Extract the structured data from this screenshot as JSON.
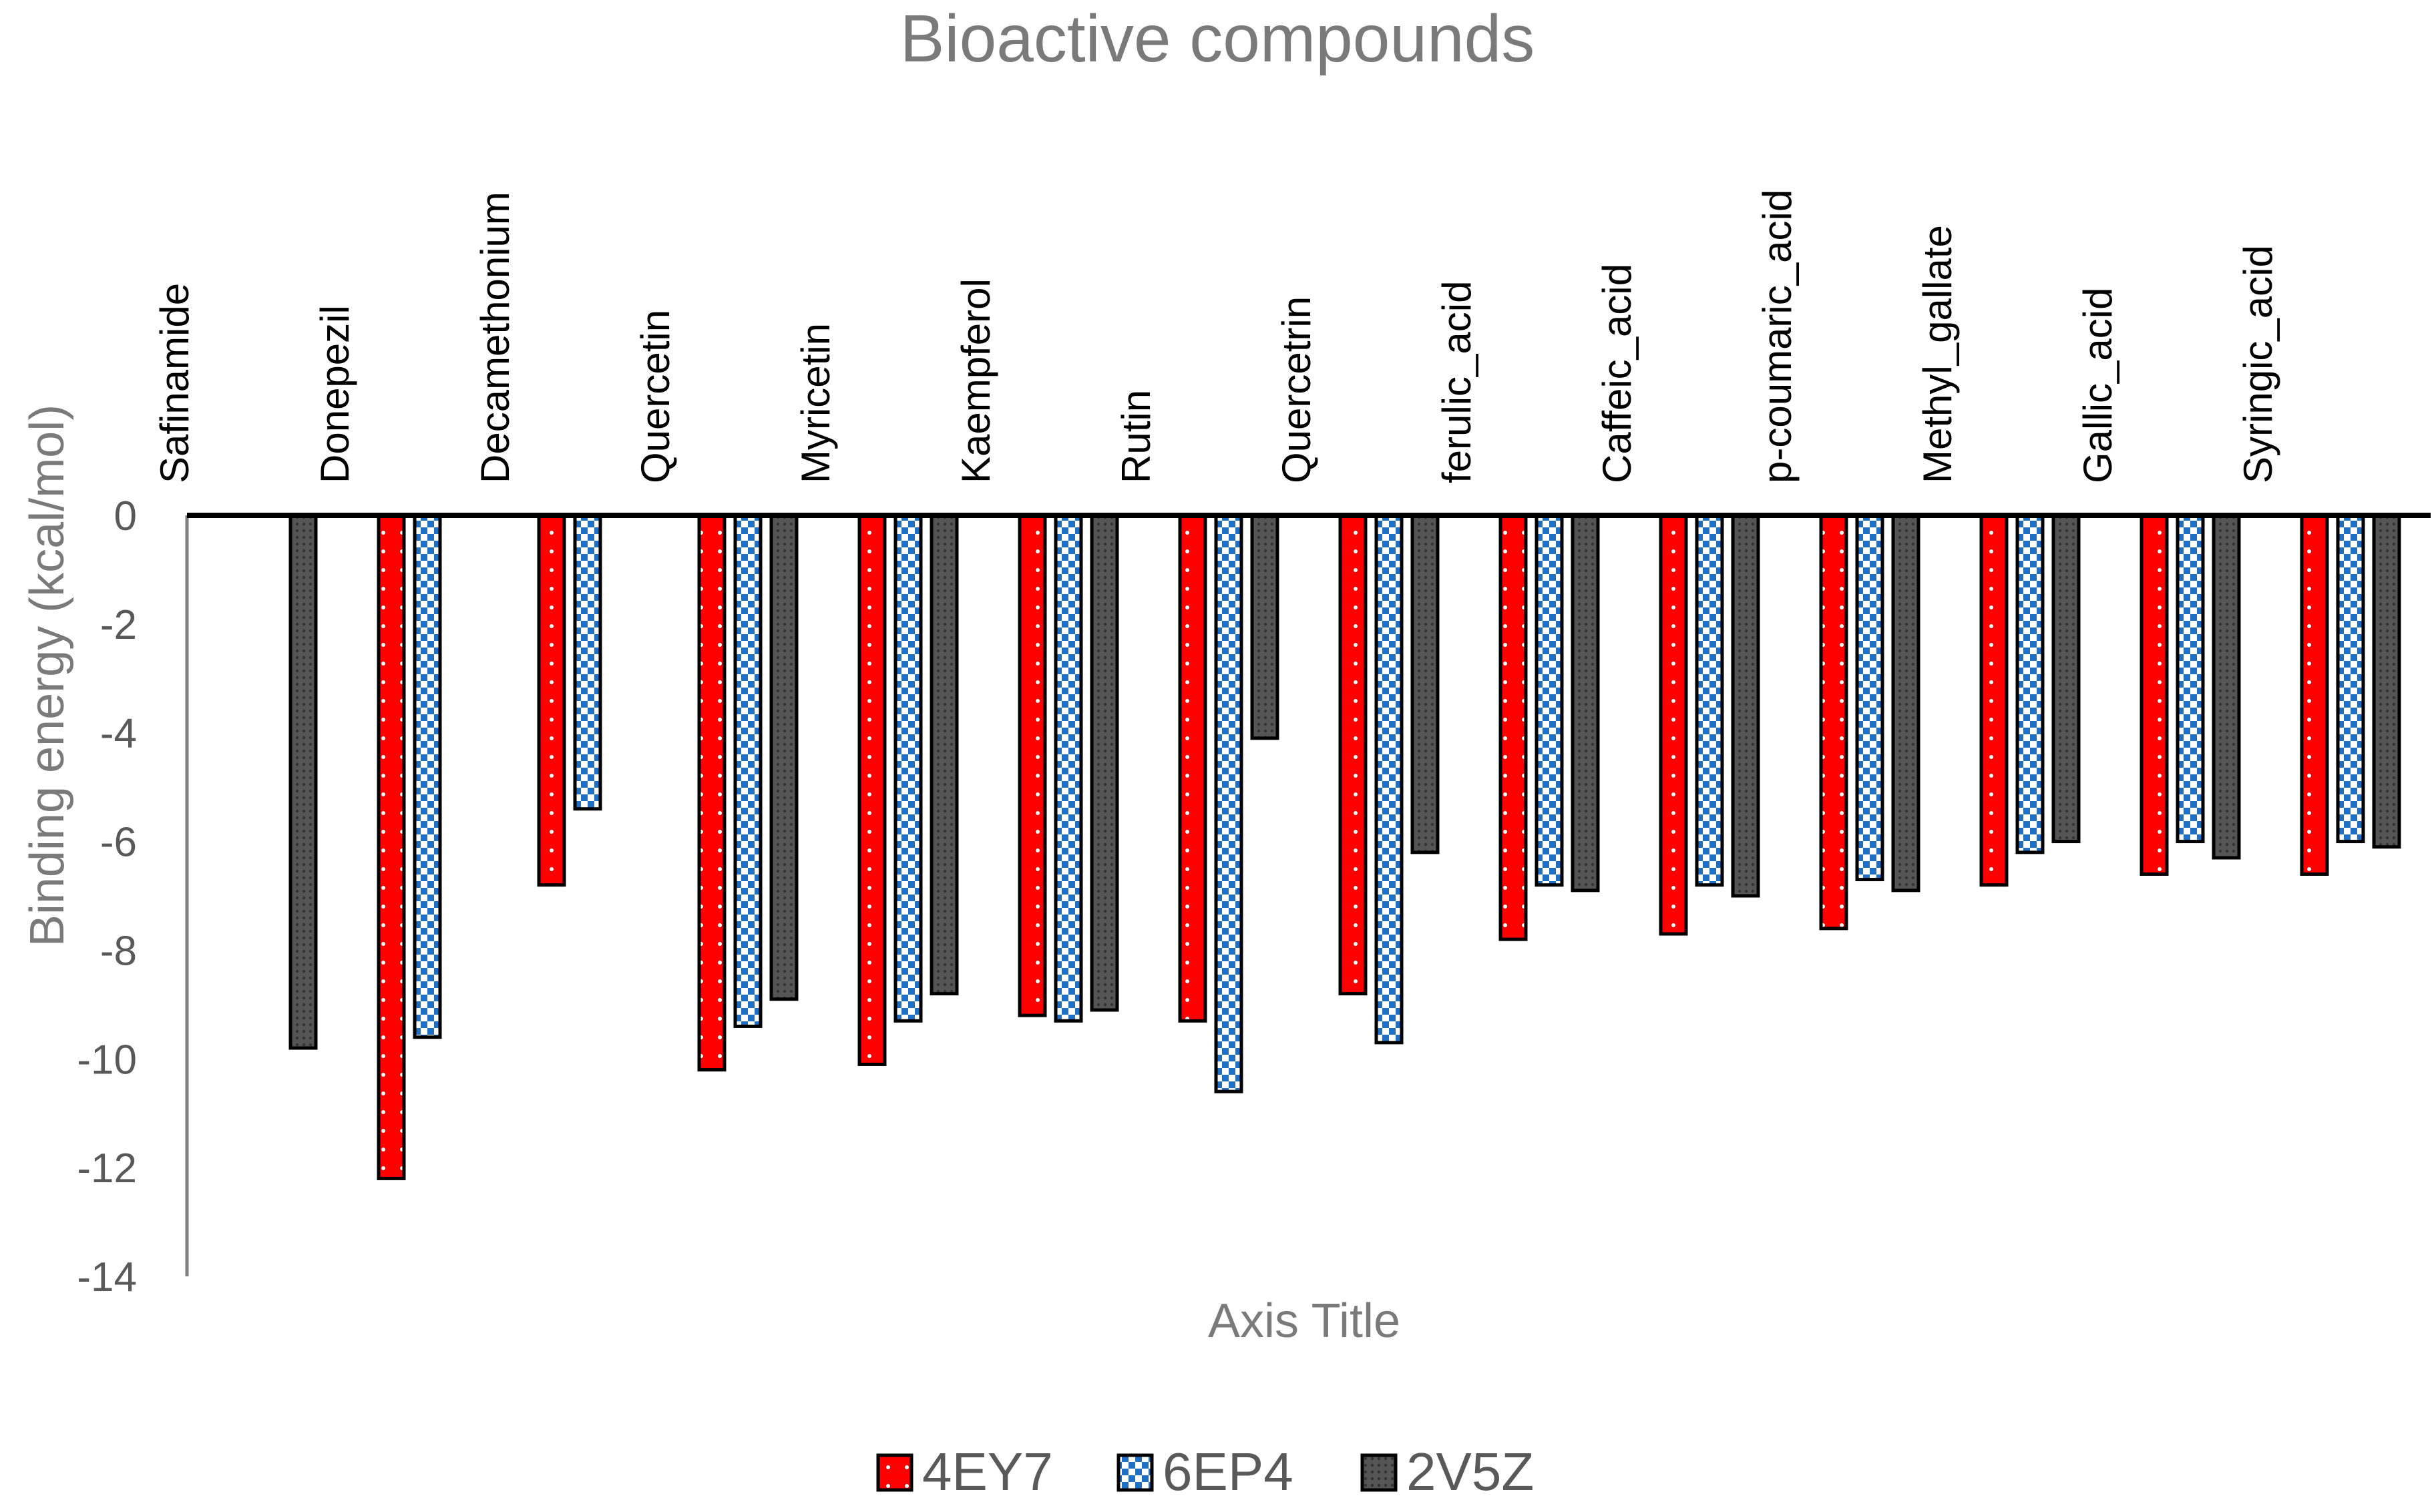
{
  "chart_data": {
    "type": "bar",
    "title": "Bioactive compounds",
    "xlabel": "Axis Title",
    "ylabel": "Binding energy (kcal/mol)",
    "ylim": [
      -14,
      0
    ],
    "yticks": [
      0,
      -2,
      -4,
      -6,
      -8,
      -10,
      -12,
      -14
    ],
    "grid": false,
    "legend_position": "bottom",
    "categories": [
      "Safinamide",
      "Donepezil",
      "Decamethonium",
      "Quercetin",
      "Myricetin",
      "Kaempferol",
      "Rutin",
      "Quercetrin",
      "ferulic_acid",
      "Caffeic_acid",
      "p-coumaric_acid",
      "Methyl_gallate",
      "Gallic_acid",
      "Syringic_acid"
    ],
    "series": [
      {
        "name": "4EY7",
        "color": "#ff0000",
        "pattern": "dots-white",
        "values": [
          null,
          -12.2,
          -6.8,
          -10.2,
          -10.1,
          -9.2,
          -9.3,
          -8.8,
          -7.8,
          -7.7,
          -7.6,
          -6.8,
          -6.6,
          -6.6
        ]
      },
      {
        "name": "6EP4",
        "color": "#1f6fc5",
        "pattern": "checker-blue",
        "values": [
          null,
          -9.6,
          -5.4,
          -9.4,
          -9.3,
          -9.3,
          -10.6,
          -9.7,
          -6.8,
          -6.8,
          -6.7,
          -6.2,
          -6.0,
          -6.0
        ]
      },
      {
        "name": "2V5Z",
        "color": "#555555",
        "pattern": "dots-dark",
        "values": [
          -9.8,
          null,
          null,
          -8.9,
          -8.8,
          -9.1,
          -4.1,
          -6.2,
          -6.9,
          -7.0,
          -6.9,
          -6.0,
          -6.3,
          -6.1
        ]
      }
    ]
  }
}
